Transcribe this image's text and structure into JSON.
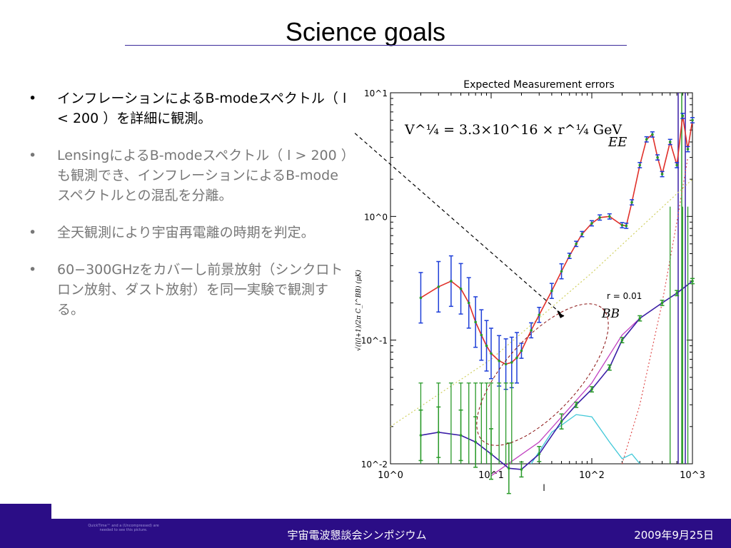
{
  "slide": {
    "title": "Science goals",
    "bullets": [
      {
        "text": "インフレーションによるB-modeスペクトル（ l < 200 ）を詳細に観測。",
        "style": "black"
      },
      {
        "text": "LensingによるB-modeスペクトル（ l > 200 ）も観測でき、インフレーションによるB-modeスペクトルとの混乱を分離。",
        "style": "gray"
      },
      {
        "text": "全天観測により宇宙再電離の時期を判定。",
        "style": "gray"
      },
      {
        "text": "60−300GHzをカバーし前景放射（シンクロトロン放射、ダスト放射）を同一実験で観測する。",
        "style": "gray"
      }
    ],
    "bullet_marker": "•",
    "footer": {
      "center": "宇宙電波懇談会シンポジウム",
      "date": "2009年9月25日",
      "quicktime_note": "QuickTime™ and a (Uncompressed) are needed to see this picture."
    }
  },
  "chart_data": {
    "type": "line",
    "title": "Expected Measurement errors",
    "ylabel": "√(l(l+1)/2π C_l^BB) (μK)",
    "xlabel": "l",
    "xscale": "log",
    "yscale": "log",
    "xlim": [
      1,
      1000
    ],
    "ylim": [
      0.01,
      10
    ],
    "x_ticks": [
      "10^0",
      "10^1",
      "10^2",
      "10^3"
    ],
    "y_ticks": [
      "10^-2",
      "10^-1",
      "10^0",
      "10^1"
    ],
    "formula": "V^¼ = 3.3×10^16 × r^¼ GeV",
    "annotations": [
      "EE",
      "r = 0.01",
      "BB"
    ],
    "colors": {
      "EE": "#e0302a",
      "BB": "#3a1ea6",
      "lensing": "#c040c0",
      "dust": "#d0d060",
      "synch": "#40c8d8",
      "noise": "#e05050",
      "err_green": "#2a9a2a",
      "err_blue": "#1e3fd8"
    },
    "series": [
      {
        "name": "EE",
        "x": [
          2,
          3,
          4,
          5,
          6,
          7,
          8,
          9,
          10,
          12,
          14,
          16,
          18,
          20,
          25,
          30,
          40,
          50,
          60,
          70,
          80,
          100,
          120,
          150,
          200,
          220,
          250,
          300,
          350,
          400,
          450,
          500,
          600,
          700,
          800,
          900,
          1000
        ],
        "y": [
          0.22,
          0.27,
          0.3,
          0.26,
          0.2,
          0.14,
          0.11,
          0.09,
          0.078,
          0.068,
          0.064,
          0.066,
          0.072,
          0.082,
          0.12,
          0.16,
          0.25,
          0.36,
          0.48,
          0.6,
          0.72,
          0.88,
          0.98,
          1.0,
          0.85,
          0.84,
          1.3,
          2.6,
          4.2,
          4.6,
          3.0,
          2.2,
          4.0,
          2.6,
          6.5,
          3.5,
          6.0
        ]
      },
      {
        "name": "BB",
        "x": [
          2,
          3,
          5,
          7,
          10,
          15,
          20,
          30,
          50,
          70,
          100,
          150,
          200,
          300,
          500,
          700,
          1000
        ],
        "y": [
          0.017,
          0.018,
          0.017,
          0.015,
          0.012,
          0.0092,
          0.009,
          0.012,
          0.022,
          0.03,
          0.04,
          0.06,
          0.1,
          0.15,
          0.2,
          0.24,
          0.3
        ]
      }
    ]
  }
}
